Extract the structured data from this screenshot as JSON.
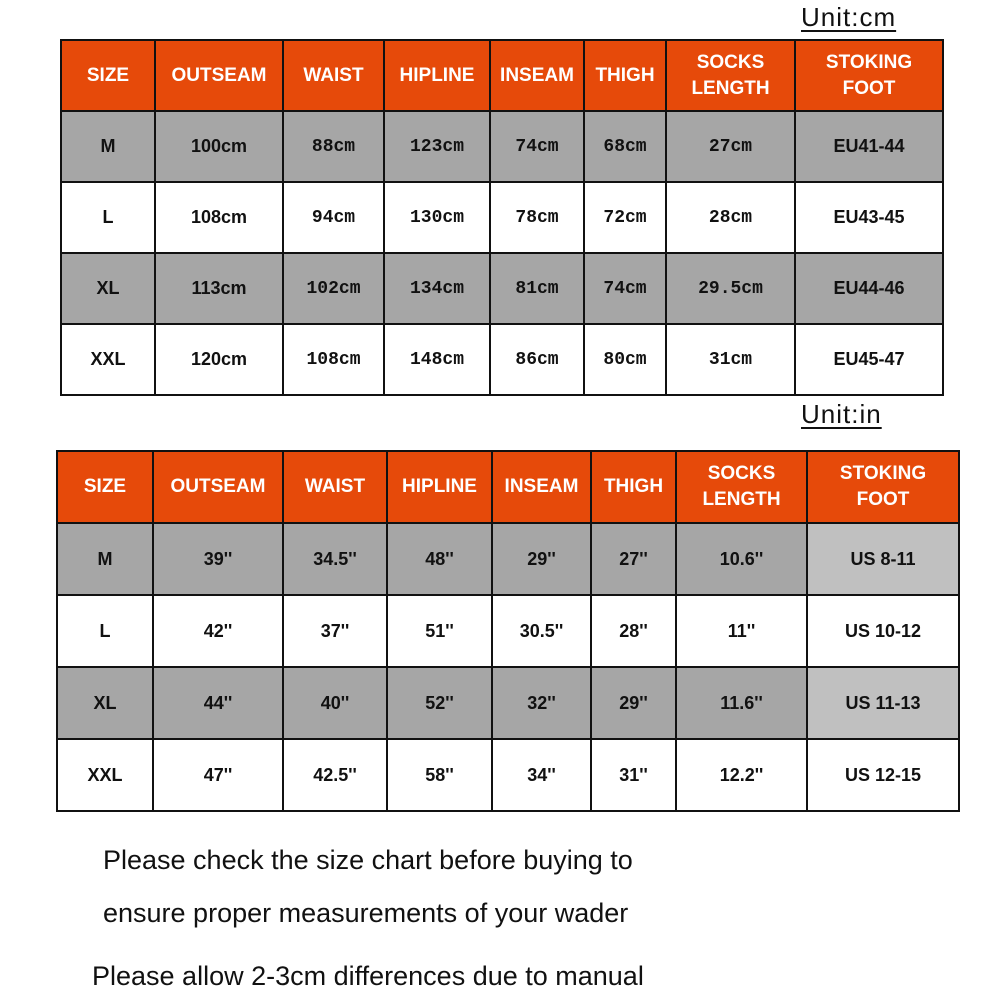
{
  "cm_table": {
    "unit_label": "Unit:cm",
    "headers": [
      "SIZE",
      "OUTSEAM",
      "WAIST",
      "HIPLINE",
      "INSEAM",
      "THIGH",
      "SOCKS\nLENGTH",
      "STOKING\nFOOT"
    ],
    "rows": [
      [
        "M",
        "100cm",
        "88cm",
        "123cm",
        "74cm",
        "68cm",
        "27cm",
        "EU41-44"
      ],
      [
        "L",
        "108cm",
        "94cm",
        "130cm",
        "78cm",
        "72cm",
        "28cm",
        "EU43-45"
      ],
      [
        "XL",
        "113cm",
        "102cm",
        "134cm",
        "81cm",
        "74cm",
        "29.5cm",
        "EU44-46"
      ],
      [
        "XXL",
        "120cm",
        "108cm",
        "148cm",
        "86cm",
        "80cm",
        "31cm",
        "EU45-47"
      ]
    ]
  },
  "in_table": {
    "unit_label": "Unit:in",
    "headers": [
      "SIZE",
      "OUTSEAM",
      "WAIST",
      "HIPLINE",
      "INSEAM",
      "THIGH",
      "SOCKS\nLENGTH",
      "STOKING\nFOOT"
    ],
    "rows": [
      [
        "M",
        "39''",
        "34.5''",
        "48''",
        "29''",
        "27''",
        "10.6''",
        "US 8-11"
      ],
      [
        "L",
        "42''",
        "37''",
        "51''",
        "30.5''",
        "28''",
        "11''",
        "US 10-12"
      ],
      [
        "XL",
        "44''",
        "40''",
        "52''",
        "32''",
        "29''",
        "11.6''",
        "US 11-13"
      ],
      [
        "XXL",
        "47''",
        "42.5''",
        "58''",
        "34''",
        "31''",
        "12.2''",
        "US 12-15"
      ]
    ]
  },
  "colors": {
    "header_bg": "#e64a0a",
    "shaded_row": "#a6a6a6",
    "light_cell": "#c0c0c0"
  },
  "notes": [
    "Please check the size chart before buying to",
    "ensure proper measurements of your wader",
    "Please allow 2-3cm differences due to manual"
  ]
}
